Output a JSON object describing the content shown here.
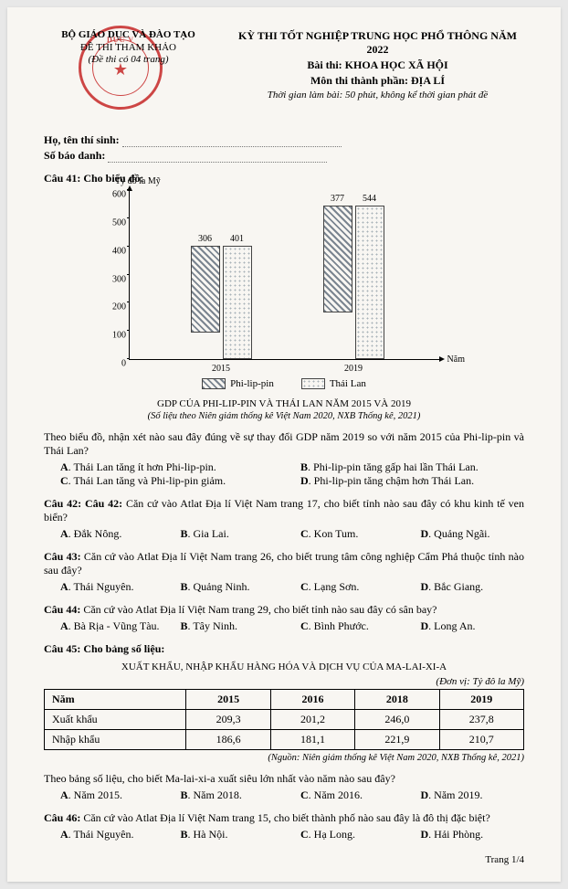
{
  "header": {
    "ministry": "BỘ GIÁO DỤC VÀ ĐÀO TẠO",
    "reference": "ĐỀ THI THAM KHẢO",
    "page_count": "(Đề thi có 04 trang)",
    "exam_title": "KỲ THI TỐT NGHIỆP TRUNG HỌC PHỔ THÔNG NĂM 2022",
    "subject": "Bài thi: KHOA HỌC XÃ HỘI",
    "component": "Môn thi thành phần: ĐỊA LÍ",
    "duration": "Thời gian làm bài: 50 phút, không kể thời gian phát đề",
    "student_name_label": "Họ, tên thí sinh:",
    "student_id_label": "Số báo danh:"
  },
  "seal": {
    "top": "DỤC V",
    "glyph": "★"
  },
  "q41": {
    "prompt": "Câu 41: Cho biểu đồ:",
    "chart": {
      "type": "bar",
      "ylabel": "Tỷ đô la Mỹ",
      "xlabel": "Năm",
      "ylim": [
        0,
        600
      ],
      "ytick_step": 100,
      "categories": [
        "2015",
        "2019"
      ],
      "series": [
        {
          "name": "Phi-lip-pin",
          "values": [
            306,
            377
          ],
          "fill": "hatch"
        },
        {
          "name": "Thái Lan",
          "values": [
            401,
            544
          ],
          "fill": "dots"
        }
      ],
      "caption": "GDP CỦA PHI-LIP-PIN VÀ THÁI LAN NĂM 2015 VÀ 2019",
      "source": "(Số liệu theo Niên giám thống kê Việt Nam 2020, NXB Thống kê, 2021)"
    },
    "lead": "Theo biểu đồ, nhận xét nào sau đây đúng về sự thay đổi GDP năm 2019 so với năm 2015 của Phi-lip-pin và Thái Lan?",
    "options": {
      "A": "Thái Lan tăng ít hơn Phi-lip-pin.",
      "B": "Phi-lip-pin tăng gấp hai lần Thái Lan.",
      "C": "Thái Lan tăng và Phi-lip-pin giảm.",
      "D": "Phi-lip-pin tăng chậm hơn Thái Lan."
    }
  },
  "q42": {
    "prompt": "Câu 42: Căn cứ vào Atlat Địa lí Việt Nam trang 17, cho biết tỉnh nào sau đây có khu kinh tế ven biển?",
    "options": {
      "A": "Đắk Nông.",
      "B": "Gia Lai.",
      "C": "Kon Tum.",
      "D": "Quảng Ngãi."
    }
  },
  "q43": {
    "prompt": "Câu 43: Căn cứ vào Atlat Địa lí Việt Nam trang 26, cho biết trung tâm công nghiệp Cẩm Phả thuộc tỉnh nào sau đây?",
    "options": {
      "A": "Thái Nguyên.",
      "B": "Quảng Ninh.",
      "C": "Lạng Sơn.",
      "D": "Bắc Giang."
    }
  },
  "q44": {
    "prompt": "Câu 44: Căn cứ vào Atlat Địa lí Việt Nam trang 29, cho biết tỉnh nào sau đây có sân bay?",
    "options": {
      "A": "Bà Rịa - Vũng Tàu.",
      "B": "Tây Ninh.",
      "C": "Bình Phước.",
      "D": "Long An."
    }
  },
  "q45": {
    "prompt": "Câu 45: Cho bảng số liệu:",
    "table": {
      "caption": "XUẤT KHẨU, NHẬP KHẨU HÀNG HÓA VÀ DỊCH VỤ CỦA MA-LAI-XI-A",
      "unit": "(Đơn vị: Tỷ đô la Mỹ)",
      "columns": [
        "Năm",
        "2015",
        "2016",
        "2018",
        "2019"
      ],
      "rows": [
        [
          "Xuất khẩu",
          "209,3",
          "201,2",
          "246,0",
          "237,8"
        ],
        [
          "Nhập khẩu",
          "186,6",
          "181,1",
          "221,9",
          "210,7"
        ]
      ],
      "source": "(Nguồn: Niên giám thống kê Việt Nam 2020, NXB Thống kê, 2021)"
    },
    "lead": "Theo bảng số liệu, cho biết Ma-lai-xi-a xuất siêu lớn nhất vào năm nào sau đây?",
    "options": {
      "A": "Năm 2015.",
      "B": "Năm 2018.",
      "C": "Năm 2016.",
      "D": "Năm 2019."
    }
  },
  "q46": {
    "prompt": "Câu 46: Căn cứ vào Atlat Địa lí Việt Nam trang 15, cho biết thành phố nào sau đây là đô thị đặc biệt?",
    "options": {
      "A": "Thái Nguyên.",
      "B": "Hà Nội.",
      "C": "Hạ Long.",
      "D": "Hải Phòng."
    }
  },
  "footer": {
    "page": "Trang 1/4"
  }
}
